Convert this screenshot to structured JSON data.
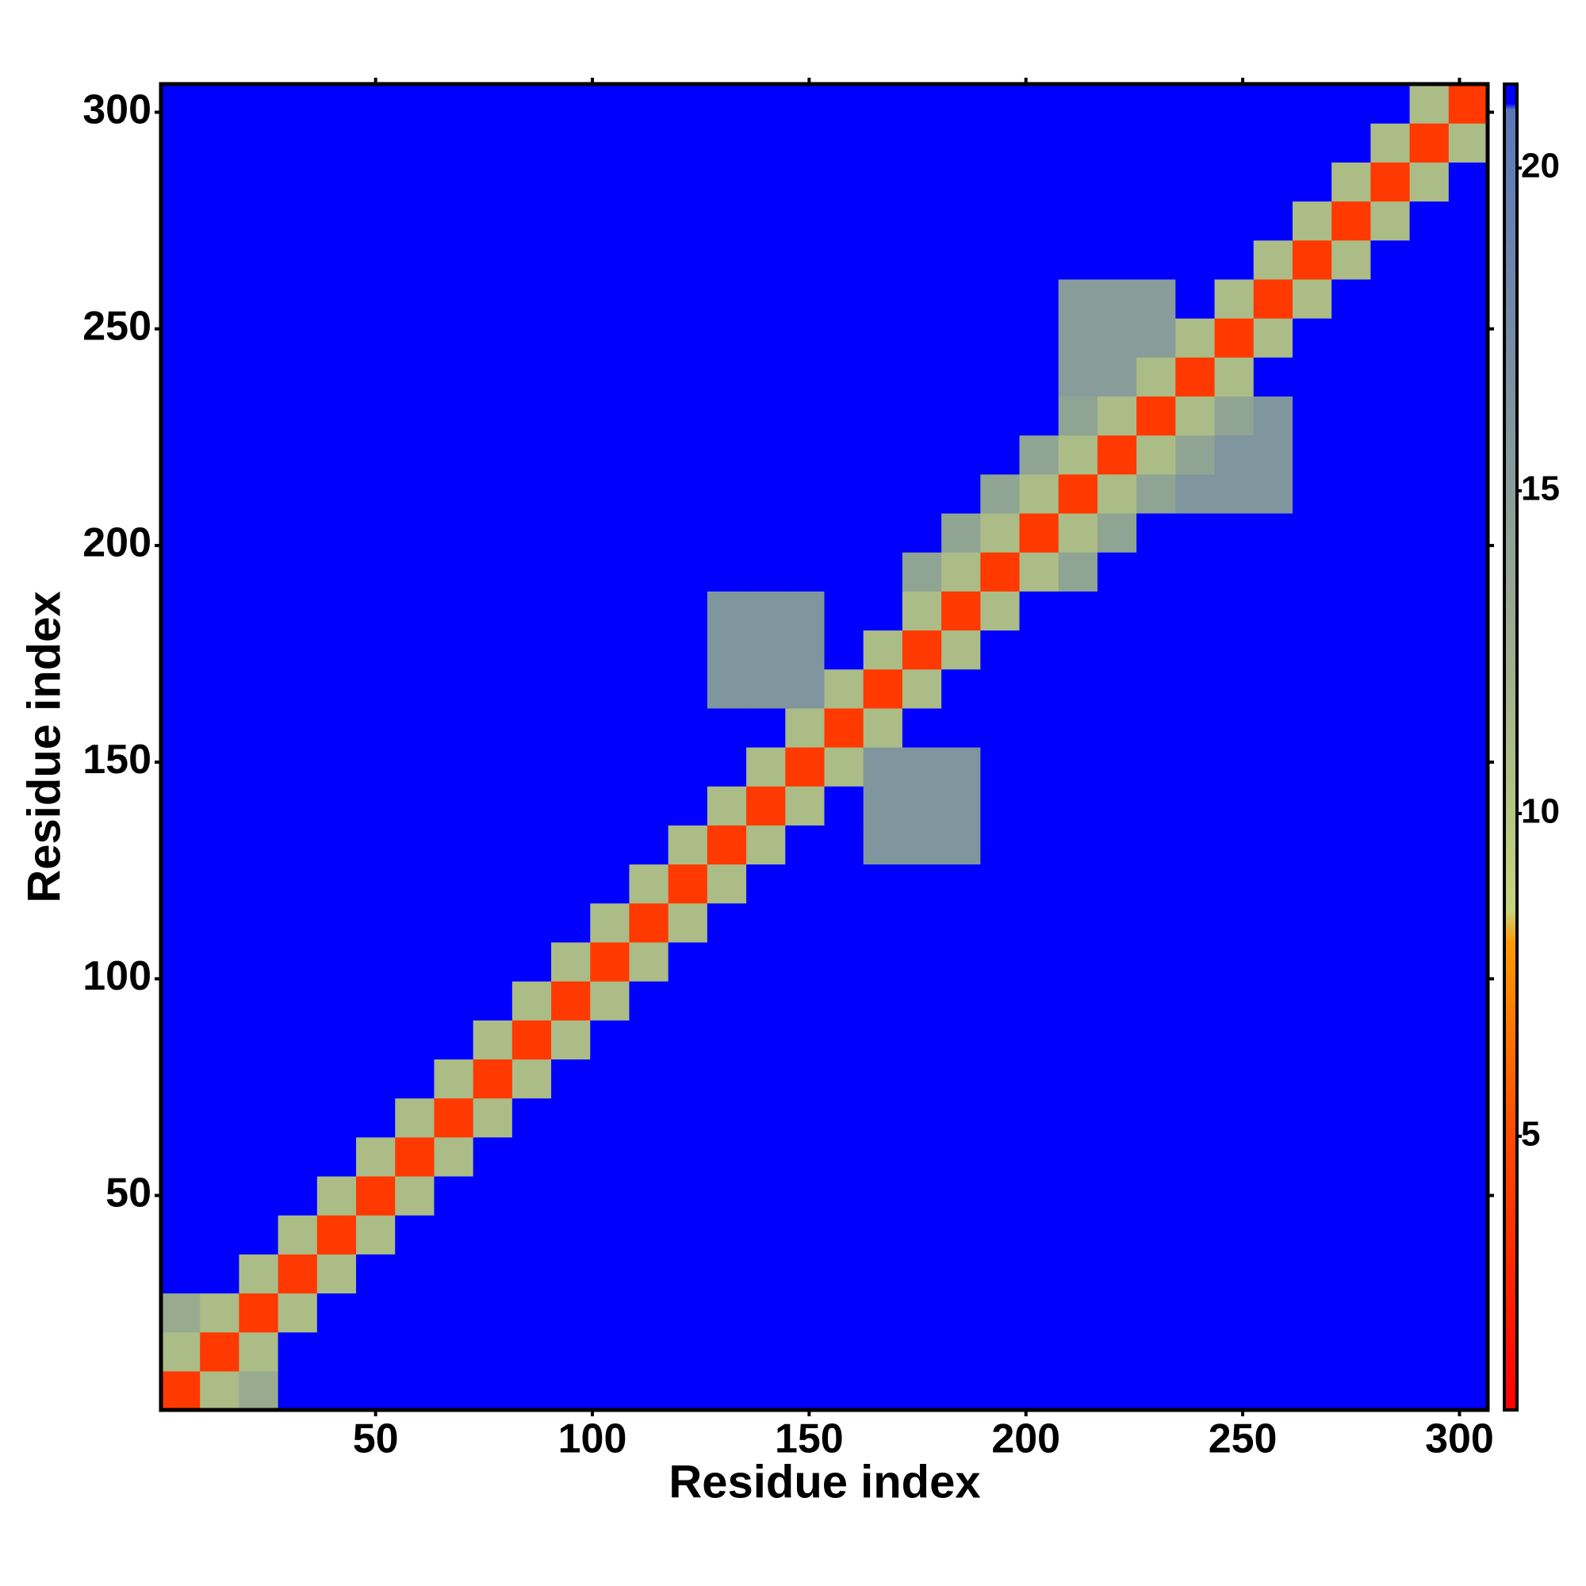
{
  "chart_data": {
    "type": "heatmap",
    "x_label": "Residue index",
    "y_label": "Residue index",
    "xlim": [
      0.5,
      306.5
    ],
    "ylim": [
      0.5,
      306.5
    ],
    "xticks": [
      50,
      100,
      150,
      200,
      250,
      300
    ],
    "yticks": [
      50,
      100,
      150,
      200,
      250,
      300
    ],
    "colorbar_lim": [
      0.76,
      21.3
    ],
    "colorbar_ticks": [
      5,
      10,
      15,
      20
    ],
    "colorscale": [
      [
        0.76,
        "#ff0000"
      ],
      [
        5,
        "#ff4a00"
      ],
      [
        8,
        "#ff9a00"
      ],
      [
        8.5,
        "#c8d47c"
      ],
      [
        12,
        "#a0b28a"
      ],
      [
        18,
        "#7088a8"
      ],
      [
        20.9,
        "#5a78b8"
      ],
      [
        21,
        "#0000ff"
      ],
      [
        21.3,
        "#0000ff"
      ]
    ],
    "x": [
      5,
      14,
      23,
      32,
      41,
      50,
      59,
      68,
      77,
      86,
      95,
      104,
      113,
      122,
      131,
      140,
      149,
      158,
      167,
      176,
      185,
      194,
      203,
      212,
      221,
      230,
      239,
      248,
      257,
      266,
      275,
      284,
      293,
      302
    ],
    "y": [
      5,
      14,
      23,
      32,
      41,
      50,
      59,
      68,
      77,
      86,
      95,
      104,
      113,
      122,
      131,
      140,
      149,
      158,
      167,
      176,
      185,
      194,
      203,
      212,
      221,
      230,
      239,
      248,
      257,
      266,
      275,
      284,
      293,
      302
    ],
    "z": [
      [
        4,
        11,
        13,
        21,
        21,
        21,
        21,
        21,
        21,
        21,
        21,
        21,
        21,
        21,
        21,
        21,
        21,
        21,
        21,
        21,
        21,
        21,
        21,
        21,
        21,
        21,
        21,
        21,
        21,
        21,
        21,
        21,
        21,
        21
      ],
      [
        11,
        4,
        11,
        21,
        21,
        21,
        21,
        21,
        21,
        21,
        21,
        21,
        21,
        21,
        21,
        21,
        21,
        21,
        21,
        21,
        21,
        21,
        21,
        21,
        21,
        21,
        21,
        21,
        21,
        21,
        21,
        21,
        21,
        21
      ],
      [
        13,
        11,
        4,
        11,
        21,
        21,
        21,
        21,
        21,
        21,
        21,
        21,
        21,
        21,
        21,
        21,
        21,
        21,
        21,
        21,
        21,
        21,
        21,
        21,
        21,
        21,
        21,
        21,
        21,
        21,
        21,
        21,
        21,
        21
      ],
      [
        21,
        21,
        11,
        4,
        11,
        21,
        21,
        21,
        21,
        21,
        21,
        21,
        21,
        21,
        21,
        21,
        21,
        21,
        21,
        21,
        21,
        21,
        21,
        21,
        21,
        21,
        21,
        21,
        21,
        21,
        21,
        21,
        21,
        21
      ],
      [
        21,
        21,
        21,
        11,
        4,
        11,
        21,
        21,
        21,
        21,
        21,
        21,
        21,
        21,
        21,
        21,
        21,
        21,
        21,
        21,
        21,
        21,
        21,
        21,
        21,
        21,
        21,
        21,
        21,
        21,
        21,
        21,
        21,
        21
      ],
      [
        21,
        21,
        21,
        21,
        11,
        4,
        11,
        21,
        21,
        21,
        21,
        21,
        21,
        21,
        21,
        21,
        21,
        21,
        21,
        21,
        21,
        21,
        21,
        21,
        21,
        21,
        21,
        21,
        21,
        21,
        21,
        21,
        21,
        21
      ],
      [
        21,
        21,
        21,
        21,
        21,
        11,
        4,
        11,
        21,
        21,
        21,
        21,
        21,
        21,
        21,
        21,
        21,
        21,
        21,
        21,
        21,
        21,
        21,
        21,
        21,
        21,
        21,
        21,
        21,
        21,
        21,
        21,
        21,
        21
      ],
      [
        21,
        21,
        21,
        21,
        21,
        21,
        11,
        4,
        11,
        21,
        21,
        21,
        21,
        21,
        21,
        21,
        21,
        21,
        21,
        21,
        21,
        21,
        21,
        21,
        21,
        21,
        21,
        21,
        21,
        21,
        21,
        21,
        21,
        21
      ],
      [
        21,
        21,
        21,
        21,
        21,
        21,
        21,
        11,
        4,
        11,
        21,
        21,
        21,
        21,
        21,
        21,
        21,
        21,
        21,
        21,
        21,
        21,
        21,
        21,
        21,
        21,
        21,
        21,
        21,
        21,
        21,
        21,
        21,
        21
      ],
      [
        21,
        21,
        21,
        21,
        21,
        21,
        21,
        21,
        11,
        4,
        11,
        21,
        21,
        21,
        21,
        21,
        21,
        21,
        21,
        21,
        21,
        21,
        21,
        21,
        21,
        21,
        21,
        21,
        21,
        21,
        21,
        21,
        21,
        21
      ],
      [
        21,
        21,
        21,
        21,
        21,
        21,
        21,
        21,
        21,
        11,
        4,
        11,
        21,
        21,
        21,
        21,
        21,
        21,
        21,
        21,
        21,
        21,
        21,
        21,
        21,
        21,
        21,
        21,
        21,
        21,
        21,
        21,
        21,
        21
      ],
      [
        21,
        21,
        21,
        21,
        21,
        21,
        21,
        21,
        21,
        21,
        11,
        4,
        11,
        21,
        21,
        21,
        21,
        21,
        21,
        21,
        21,
        21,
        21,
        21,
        21,
        21,
        21,
        21,
        21,
        21,
        21,
        21,
        21,
        21
      ],
      [
        21,
        21,
        21,
        21,
        21,
        21,
        21,
        21,
        21,
        21,
        21,
        11,
        4,
        11,
        21,
        21,
        21,
        21,
        21,
        21,
        21,
        21,
        21,
        21,
        21,
        21,
        21,
        21,
        21,
        21,
        21,
        21,
        21,
        21
      ],
      [
        21,
        21,
        21,
        21,
        21,
        21,
        21,
        21,
        21,
        21,
        21,
        21,
        11,
        4,
        11,
        21,
        21,
        21,
        21,
        21,
        21,
        21,
        21,
        21,
        21,
        21,
        21,
        21,
        21,
        21,
        21,
        21,
        21,
        21
      ],
      [
        21,
        21,
        21,
        21,
        21,
        21,
        21,
        21,
        21,
        21,
        21,
        21,
        21,
        11,
        4,
        11,
        21,
        21,
        16,
        16,
        16,
        21,
        21,
        21,
        21,
        21,
        21,
        21,
        21,
        21,
        21,
        21,
        21,
        21
      ],
      [
        21,
        21,
        21,
        21,
        21,
        21,
        21,
        21,
        21,
        21,
        21,
        21,
        21,
        21,
        11,
        4,
        11,
        21,
        16,
        16,
        16,
        21,
        21,
        21,
        21,
        21,
        21,
        21,
        21,
        21,
        21,
        21,
        21,
        21
      ],
      [
        21,
        21,
        21,
        21,
        21,
        21,
        21,
        21,
        21,
        21,
        21,
        21,
        21,
        21,
        21,
        11,
        4,
        11,
        16,
        16,
        16,
        21,
        21,
        21,
        21,
        21,
        21,
        21,
        21,
        21,
        21,
        21,
        21,
        21
      ],
      [
        21,
        21,
        21,
        21,
        21,
        21,
        21,
        21,
        21,
        21,
        21,
        21,
        21,
        21,
        21,
        21,
        11,
        4,
        11,
        21,
        21,
        21,
        21,
        21,
        21,
        21,
        21,
        21,
        21,
        21,
        21,
        21,
        21,
        21
      ],
      [
        21,
        21,
        21,
        21,
        21,
        21,
        21,
        21,
        21,
        21,
        21,
        21,
        21,
        21,
        16,
        16,
        16,
        11,
        4,
        11,
        21,
        21,
        21,
        21,
        21,
        21,
        21,
        21,
        21,
        21,
        21,
        21,
        21,
        21
      ],
      [
        21,
        21,
        21,
        21,
        21,
        21,
        21,
        21,
        21,
        21,
        21,
        21,
        21,
        21,
        16,
        16,
        16,
        21,
        11,
        4,
        11,
        21,
        21,
        21,
        21,
        21,
        21,
        21,
        21,
        21,
        21,
        21,
        21,
        21
      ],
      [
        21,
        21,
        21,
        21,
        21,
        21,
        21,
        21,
        21,
        21,
        21,
        21,
        21,
        21,
        16,
        16,
        16,
        21,
        21,
        11,
        4,
        11,
        21,
        21,
        21,
        21,
        21,
        21,
        21,
        21,
        21,
        21,
        21,
        21
      ],
      [
        21,
        21,
        21,
        21,
        21,
        21,
        21,
        21,
        21,
        21,
        21,
        21,
        21,
        21,
        21,
        21,
        21,
        21,
        21,
        14,
        11,
        4,
        11,
        14,
        21,
        21,
        21,
        21,
        21,
        21,
        21,
        21,
        21,
        21
      ],
      [
        21,
        21,
        21,
        21,
        21,
        21,
        21,
        21,
        21,
        21,
        21,
        21,
        21,
        21,
        21,
        21,
        21,
        21,
        21,
        21,
        14,
        11,
        4,
        11,
        14,
        21,
        21,
        21,
        21,
        21,
        21,
        21,
        21,
        21
      ],
      [
        21,
        21,
        21,
        21,
        21,
        21,
        21,
        21,
        21,
        21,
        21,
        21,
        21,
        21,
        21,
        21,
        21,
        21,
        21,
        21,
        21,
        14,
        11,
        4,
        11,
        14,
        16,
        16,
        16,
        21,
        21,
        21,
        21,
        21
      ],
      [
        21,
        21,
        21,
        21,
        21,
        21,
        21,
        21,
        21,
        21,
        21,
        21,
        21,
        21,
        21,
        21,
        21,
        21,
        21,
        21,
        21,
        21,
        14,
        11,
        4,
        11,
        14,
        16,
        16,
        21,
        21,
        21,
        21,
        21
      ],
      [
        21,
        21,
        21,
        21,
        21,
        21,
        21,
        21,
        21,
        21,
        21,
        21,
        21,
        21,
        21,
        21,
        21,
        21,
        21,
        21,
        21,
        21,
        21,
        14,
        11,
        4,
        11,
        14,
        16,
        21,
        21,
        21,
        21,
        21
      ],
      [
        21,
        21,
        21,
        21,
        21,
        21,
        21,
        21,
        21,
        21,
        21,
        21,
        21,
        21,
        21,
        21,
        21,
        21,
        21,
        21,
        21,
        21,
        21,
        15,
        15,
        11,
        4,
        11,
        21,
        21,
        21,
        21,
        21,
        21
      ],
      [
        21,
        21,
        21,
        21,
        21,
        21,
        21,
        21,
        21,
        21,
        21,
        21,
        21,
        21,
        21,
        21,
        21,
        21,
        21,
        21,
        21,
        21,
        21,
        15,
        15,
        15,
        11,
        4,
        11,
        21,
        21,
        21,
        21,
        21
      ],
      [
        21,
        21,
        21,
        21,
        21,
        21,
        21,
        21,
        21,
        21,
        21,
        21,
        21,
        21,
        21,
        21,
        21,
        21,
        21,
        21,
        21,
        21,
        21,
        15,
        15,
        15,
        21,
        11,
        4,
        11,
        21,
        21,
        21,
        21
      ],
      [
        21,
        21,
        21,
        21,
        21,
        21,
        21,
        21,
        21,
        21,
        21,
        21,
        21,
        21,
        21,
        21,
        21,
        21,
        21,
        21,
        21,
        21,
        21,
        21,
        21,
        21,
        21,
        21,
        11,
        4,
        11,
        21,
        21,
        21
      ],
      [
        21,
        21,
        21,
        21,
        21,
        21,
        21,
        21,
        21,
        21,
        21,
        21,
        21,
        21,
        21,
        21,
        21,
        21,
        21,
        21,
        21,
        21,
        21,
        21,
        21,
        21,
        21,
        21,
        21,
        11,
        4,
        11,
        21,
        21
      ],
      [
        21,
        21,
        21,
        21,
        21,
        21,
        21,
        21,
        21,
        21,
        21,
        21,
        21,
        21,
        21,
        21,
        21,
        21,
        21,
        21,
        21,
        21,
        21,
        21,
        21,
        21,
        21,
        21,
        21,
        21,
        11,
        4,
        11,
        21
      ],
      [
        21,
        21,
        21,
        21,
        21,
        21,
        21,
        21,
        21,
        21,
        21,
        21,
        21,
        21,
        21,
        21,
        21,
        21,
        21,
        21,
        21,
        21,
        21,
        21,
        21,
        21,
        21,
        21,
        21,
        21,
        21,
        11,
        4,
        11
      ],
      [
        21,
        21,
        21,
        21,
        21,
        21,
        21,
        21,
        21,
        21,
        21,
        21,
        21,
        21,
        21,
        21,
        21,
        21,
        21,
        21,
        21,
        21,
        21,
        21,
        21,
        21,
        21,
        21,
        21,
        21,
        21,
        21,
        11,
        4
      ]
    ]
  }
}
